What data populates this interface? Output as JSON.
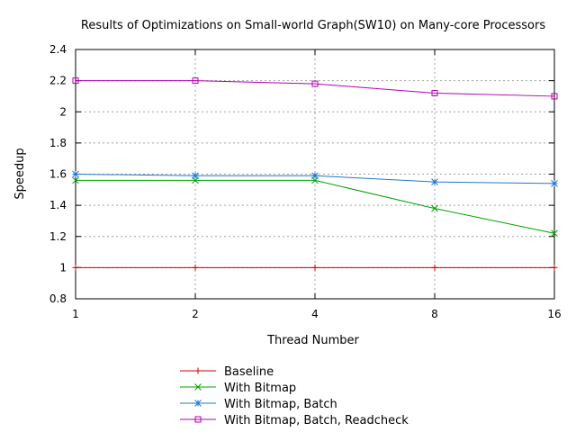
{
  "chart_data": {
    "type": "line",
    "title": "Results of Optimizations on Small-world Graph(SW10) on Many-core Processors",
    "xlabel": "Thread Number",
    "ylabel": "Speedup",
    "categories": [
      "1",
      "2",
      "4",
      "8",
      "16"
    ],
    "ylim": [
      0.8,
      2.4
    ],
    "yticks": [
      "0.8",
      "1",
      "1.2",
      "1.4",
      "1.6",
      "1.8",
      "2",
      "2.2",
      "2.4"
    ],
    "grid": true,
    "legend_position": "bottom-center",
    "series": [
      {
        "name": "Baseline",
        "color": "#cc0000",
        "marker": "plus",
        "values": [
          1.0,
          1.0,
          1.0,
          1.0,
          1.0
        ]
      },
      {
        "name": "With Bitmap",
        "color": "#00a000",
        "marker": "cross",
        "values": [
          1.56,
          1.56,
          1.56,
          1.38,
          1.22
        ]
      },
      {
        "name": "With Bitmap, Batch",
        "color": "#1e78d0",
        "marker": "star",
        "values": [
          1.6,
          1.59,
          1.59,
          1.55,
          1.54
        ]
      },
      {
        "name": "With Bitmap, Batch, Readcheck",
        "color": "#b000b0",
        "marker": "square",
        "values": [
          2.2,
          2.2,
          2.18,
          2.12,
          2.1
        ]
      }
    ]
  }
}
